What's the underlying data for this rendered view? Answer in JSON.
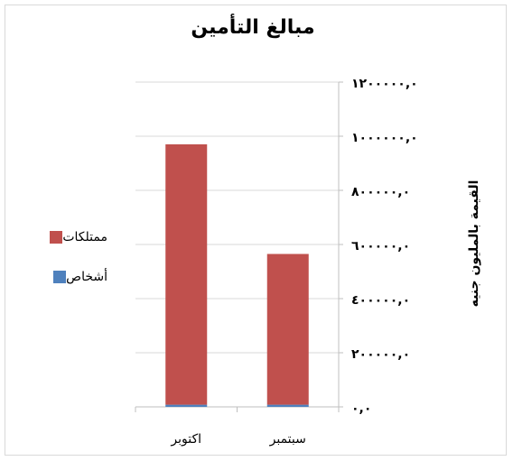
{
  "chart_data": {
    "type": "bar",
    "stacked": true,
    "title": "مبالغ التأمين",
    "ylabel": "القيمة بالمليون جنيه",
    "xlabel": "",
    "categories": [
      "اكتوبر",
      "سبتمبر"
    ],
    "series": [
      {
        "name": "أشخاص",
        "color": "#4f81bd",
        "values": [
          8000,
          8000
        ]
      },
      {
        "name": "ممتلكات",
        "color": "#c0504d",
        "values": [
          962000,
          557000
        ]
      }
    ],
    "ylim": [
      0,
      1200000
    ],
    "yticks": [
      0,
      200000,
      400000,
      600000,
      800000,
      1000000,
      1200000
    ],
    "ytick_labels": [
      "٠,٠",
      "٢٠٠٠٠٠,٠",
      "٤٠٠٠٠٠,٠",
      "٦٠٠٠٠٠,٠",
      "٨٠٠٠٠٠,٠",
      "١٠٠٠٠٠٠,٠",
      "١٢٠٠٠٠٠,٠"
    ],
    "grid": true,
    "legend_position": "left",
    "y_axis_position": "right"
  },
  "legend": [
    {
      "label": "ممتلكات",
      "color": "#c0504d"
    },
    {
      "label": "أشخاص",
      "color": "#4f81bd"
    }
  ]
}
